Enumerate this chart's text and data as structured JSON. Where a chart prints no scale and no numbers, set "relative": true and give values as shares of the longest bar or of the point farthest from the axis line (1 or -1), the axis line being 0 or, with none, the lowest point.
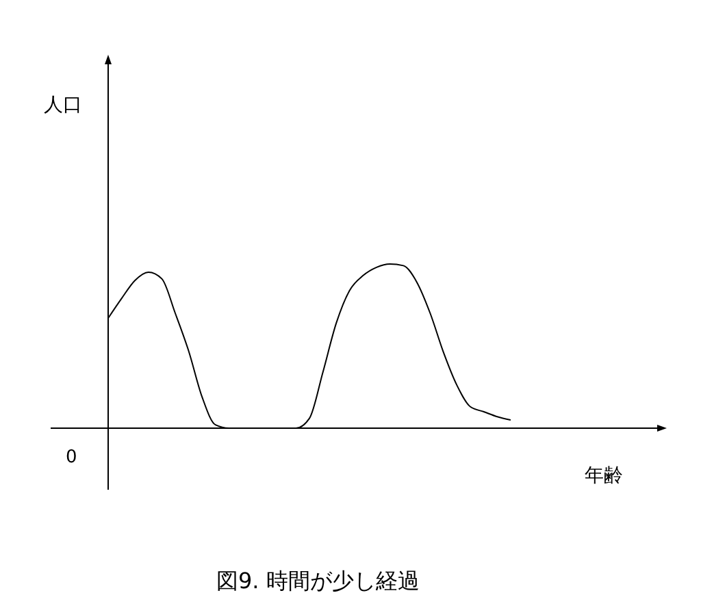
{
  "chart_data": {
    "type": "line",
    "title": "図9. 時間が少し経過",
    "xlabel": "年齢",
    "annotations": [
      "人口",
      "0"
    ],
    "relative": true,
    "categories": [
      null,
      null,
      null,
      null,
      null,
      null,
      null,
      null,
      null,
      null,
      null,
      null,
      null,
      null,
      null,
      null,
      null,
      null,
      null,
      null,
      null,
      null,
      null,
      null,
      null,
      null,
      null,
      null,
      null,
      null,
      null
    ],
    "series": [
      {
        "color": "#000000",
        "values": [
          0.67,
          0.79,
          0.9,
          0.95,
          0.91,
          0.7,
          0.47,
          0.19,
          0.02,
          0,
          0,
          0,
          0,
          0,
          0,
          0.06,
          0.34,
          0.64,
          0.84,
          0.93,
          0.98,
          1,
          0.99,
          0.89,
          0.7,
          0.46,
          0.26,
          0.13,
          0.1,
          0.07,
          0.05
        ]
      }
    ],
    "marker": "none",
    "line_style": "solid"
  }
}
